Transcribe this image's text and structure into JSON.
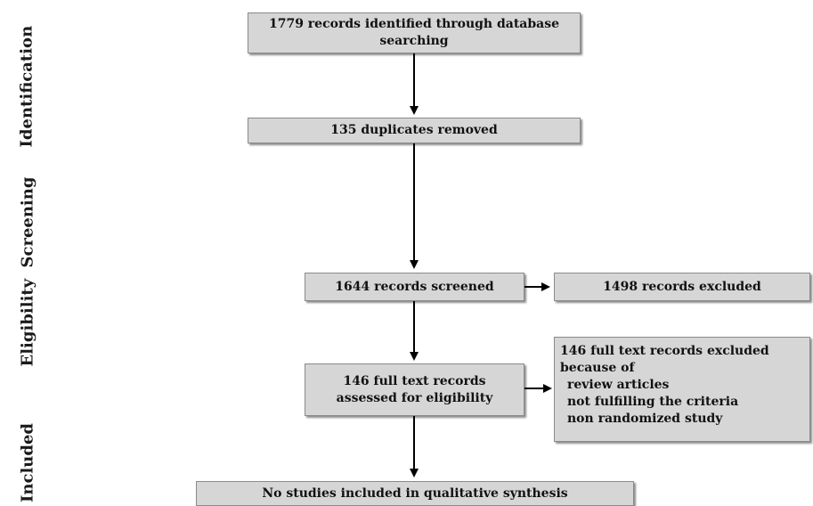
{
  "stages": [
    {
      "id": "identification",
      "label": "Identification"
    },
    {
      "id": "screening",
      "label": "Screening"
    },
    {
      "id": "eligibility",
      "label": "Eligibility"
    },
    {
      "id": "included",
      "label": "Included"
    }
  ],
  "boxes": {
    "records_identified": {
      "lines": [
        "1779 records identified through database",
        "searching"
      ]
    },
    "duplicates_removed": {
      "lines": [
        "135 duplicates removed"
      ]
    },
    "records_screened": {
      "lines": [
        "1644 records screened"
      ]
    },
    "records_excluded": {
      "lines": [
        "1498 records excluded"
      ]
    },
    "fulltext_assessed": {
      "lines": [
        "146 full text records",
        "assessed for eligibility"
      ]
    },
    "fulltext_excluded": {
      "lines": [
        "146 full text records excluded",
        "because of"
      ],
      "reasons": [
        "review articles",
        "not fulfilling the criteria",
        "non randomized study"
      ]
    },
    "included": {
      "lines": [
        "No studies included in qualitative synthesis"
      ]
    }
  },
  "colors": {
    "box_fill": "#d6d6d6",
    "box_border": "#8a8a8a",
    "arrow": "#000000"
  }
}
